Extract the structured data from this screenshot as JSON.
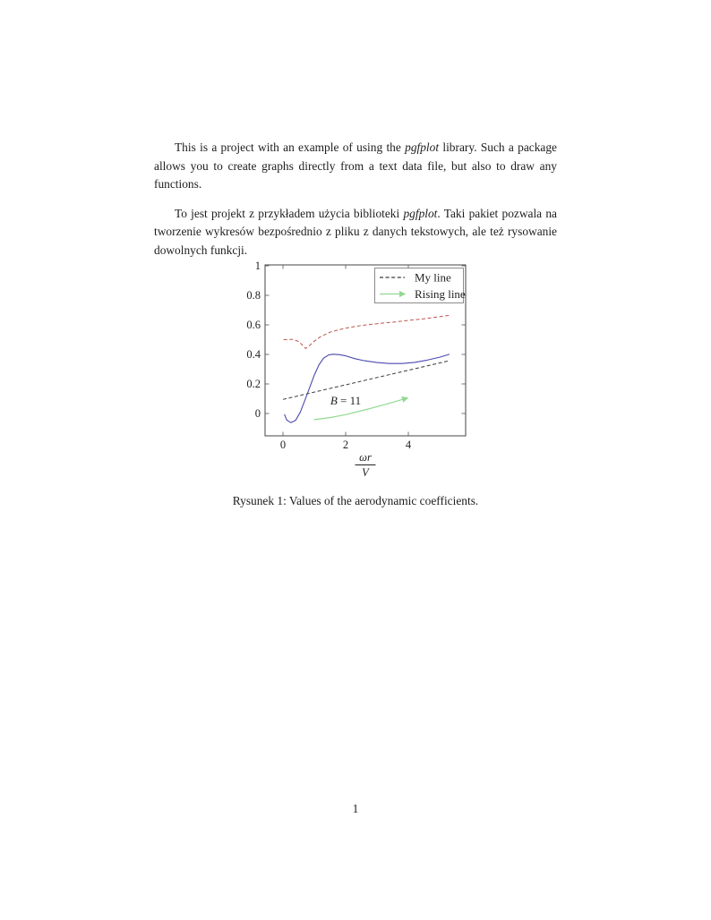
{
  "page": {
    "paragraph1": {
      "pre": "This is a project with an example of using the ",
      "em": "pgfplot",
      "post": " library. Such a package allows you to create graphs directly from a text data file, but also to draw any functions."
    },
    "paragraph2": {
      "pre": "To jest projekt z przykładem użycia biblioteki ",
      "em": "pgfplot",
      "post": ". Taki pakiet pozwala na tworzenie wykresów bezpośrednio z pliku z danych tekstowych, ale też rysowanie dowolnych funkcji."
    },
    "caption": "Rysunek 1: Values of the aerodynamic coefficients.",
    "page_number": "1"
  },
  "chart_data": {
    "type": "line",
    "title": "",
    "xlabel_fraction": {
      "numerator": "ωr",
      "denominator": "V"
    },
    "ylabel": "",
    "xlim": [
      -0.57,
      5.83
    ],
    "ylim": [
      -0.15,
      1.01
    ],
    "grid": false,
    "x_ticks": [
      {
        "value": 0,
        "label": "0"
      },
      {
        "value": 2,
        "label": "2"
      },
      {
        "value": 4,
        "label": "4"
      }
    ],
    "y_ticks": [
      {
        "value": 0,
        "label": "0"
      },
      {
        "value": 0.2,
        "label": "0.2"
      },
      {
        "value": 0.4,
        "label": "0.4"
      },
      {
        "value": 0.6,
        "label": "0.6"
      },
      {
        "value": 0.8,
        "label": "0.8"
      },
      {
        "value": 1,
        "label": "1"
      }
    ],
    "annotation": {
      "text": "B = 11",
      "x": 2.0,
      "y": 0.06
    },
    "legend": {
      "position": "top-right",
      "entries": [
        {
          "label": "My line",
          "series": "my_line"
        },
        {
          "label": "Rising line",
          "series": "rising_line"
        }
      ]
    },
    "colors": {
      "axis": "#444444",
      "tick": "#555555",
      "text": "#222222",
      "legend_border": "#6f6f6f"
    },
    "series": [
      {
        "name": "my_line",
        "color": "#3a3a3a",
        "dashed": true,
        "arrow": false,
        "width": 1,
        "points": [
          [
            0,
            0.095
          ],
          [
            5.3,
            0.357
          ]
        ]
      },
      {
        "name": "red_line",
        "color": "#bd544e",
        "dashed": true,
        "arrow": false,
        "width": 1,
        "points": [
          [
            0.02,
            0.5
          ],
          [
            0.3,
            0.502
          ],
          [
            0.5,
            0.488
          ],
          [
            0.62,
            0.463
          ],
          [
            0.72,
            0.44
          ],
          [
            0.82,
            0.455
          ],
          [
            1.0,
            0.49
          ],
          [
            1.2,
            0.52
          ],
          [
            1.5,
            0.55
          ],
          [
            1.8,
            0.568
          ],
          [
            2.1,
            0.582
          ],
          [
            2.5,
            0.596
          ],
          [
            3.0,
            0.608
          ],
          [
            3.5,
            0.618
          ],
          [
            4.0,
            0.63
          ],
          [
            4.5,
            0.641
          ],
          [
            5.0,
            0.655
          ],
          [
            5.3,
            0.665
          ]
        ]
      },
      {
        "name": "blue_line",
        "color": "#4a4aae",
        "dashed": false,
        "arrow": false,
        "width": 1.1,
        "points": [
          [
            0.05,
            -0.008
          ],
          [
            0.12,
            -0.045
          ],
          [
            0.25,
            -0.062
          ],
          [
            0.4,
            -0.047
          ],
          [
            0.55,
            0.008
          ],
          [
            0.7,
            0.09
          ],
          [
            0.85,
            0.175
          ],
          [
            1.0,
            0.26
          ],
          [
            1.15,
            0.33
          ],
          [
            1.3,
            0.375
          ],
          [
            1.45,
            0.396
          ],
          [
            1.6,
            0.401
          ],
          [
            1.8,
            0.398
          ],
          [
            2.0,
            0.39
          ],
          [
            2.3,
            0.371
          ],
          [
            2.6,
            0.357
          ],
          [
            3.0,
            0.345
          ],
          [
            3.4,
            0.338
          ],
          [
            3.8,
            0.338
          ],
          [
            4.2,
            0.346
          ],
          [
            4.6,
            0.361
          ],
          [
            5.0,
            0.381
          ],
          [
            5.3,
            0.4
          ]
        ]
      },
      {
        "name": "rising_line",
        "color": "#92d892",
        "dashed": false,
        "arrow": true,
        "width": 1.2,
        "points": [
          [
            1.0,
            -0.042
          ],
          [
            1.5,
            -0.028
          ],
          [
            2.0,
            -0.008
          ],
          [
            2.5,
            0.018
          ],
          [
            3.0,
            0.046
          ],
          [
            3.5,
            0.075
          ],
          [
            3.97,
            0.105
          ]
        ]
      }
    ]
  }
}
